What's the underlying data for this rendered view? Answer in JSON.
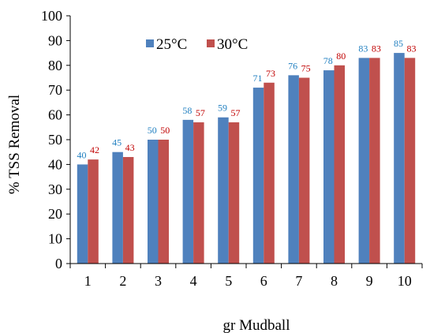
{
  "chart_data": {
    "type": "bar",
    "title": "",
    "xlabel": "gr Mudball",
    "ylabel": "% TSS Removal",
    "ylim": [
      0,
      100
    ],
    "yticks": [
      0,
      10,
      20,
      30,
      40,
      50,
      60,
      70,
      80,
      90,
      100
    ],
    "categories": [
      "1",
      "2",
      "3",
      "4",
      "5",
      "6",
      "7",
      "8",
      "9",
      "10"
    ],
    "grid": false,
    "legend_position": "top-left",
    "series": [
      {
        "name": "25°C",
        "color": "#4F81BD",
        "label_color": "#1F7FC0",
        "values": [
          40,
          45,
          50,
          58,
          59,
          71,
          76,
          78,
          83,
          85
        ]
      },
      {
        "name": "30°C",
        "color": "#C0504D",
        "label_color": "#C00000",
        "values": [
          42,
          43,
          50,
          57,
          57,
          73,
          75,
          80,
          83,
          83
        ]
      }
    ]
  }
}
